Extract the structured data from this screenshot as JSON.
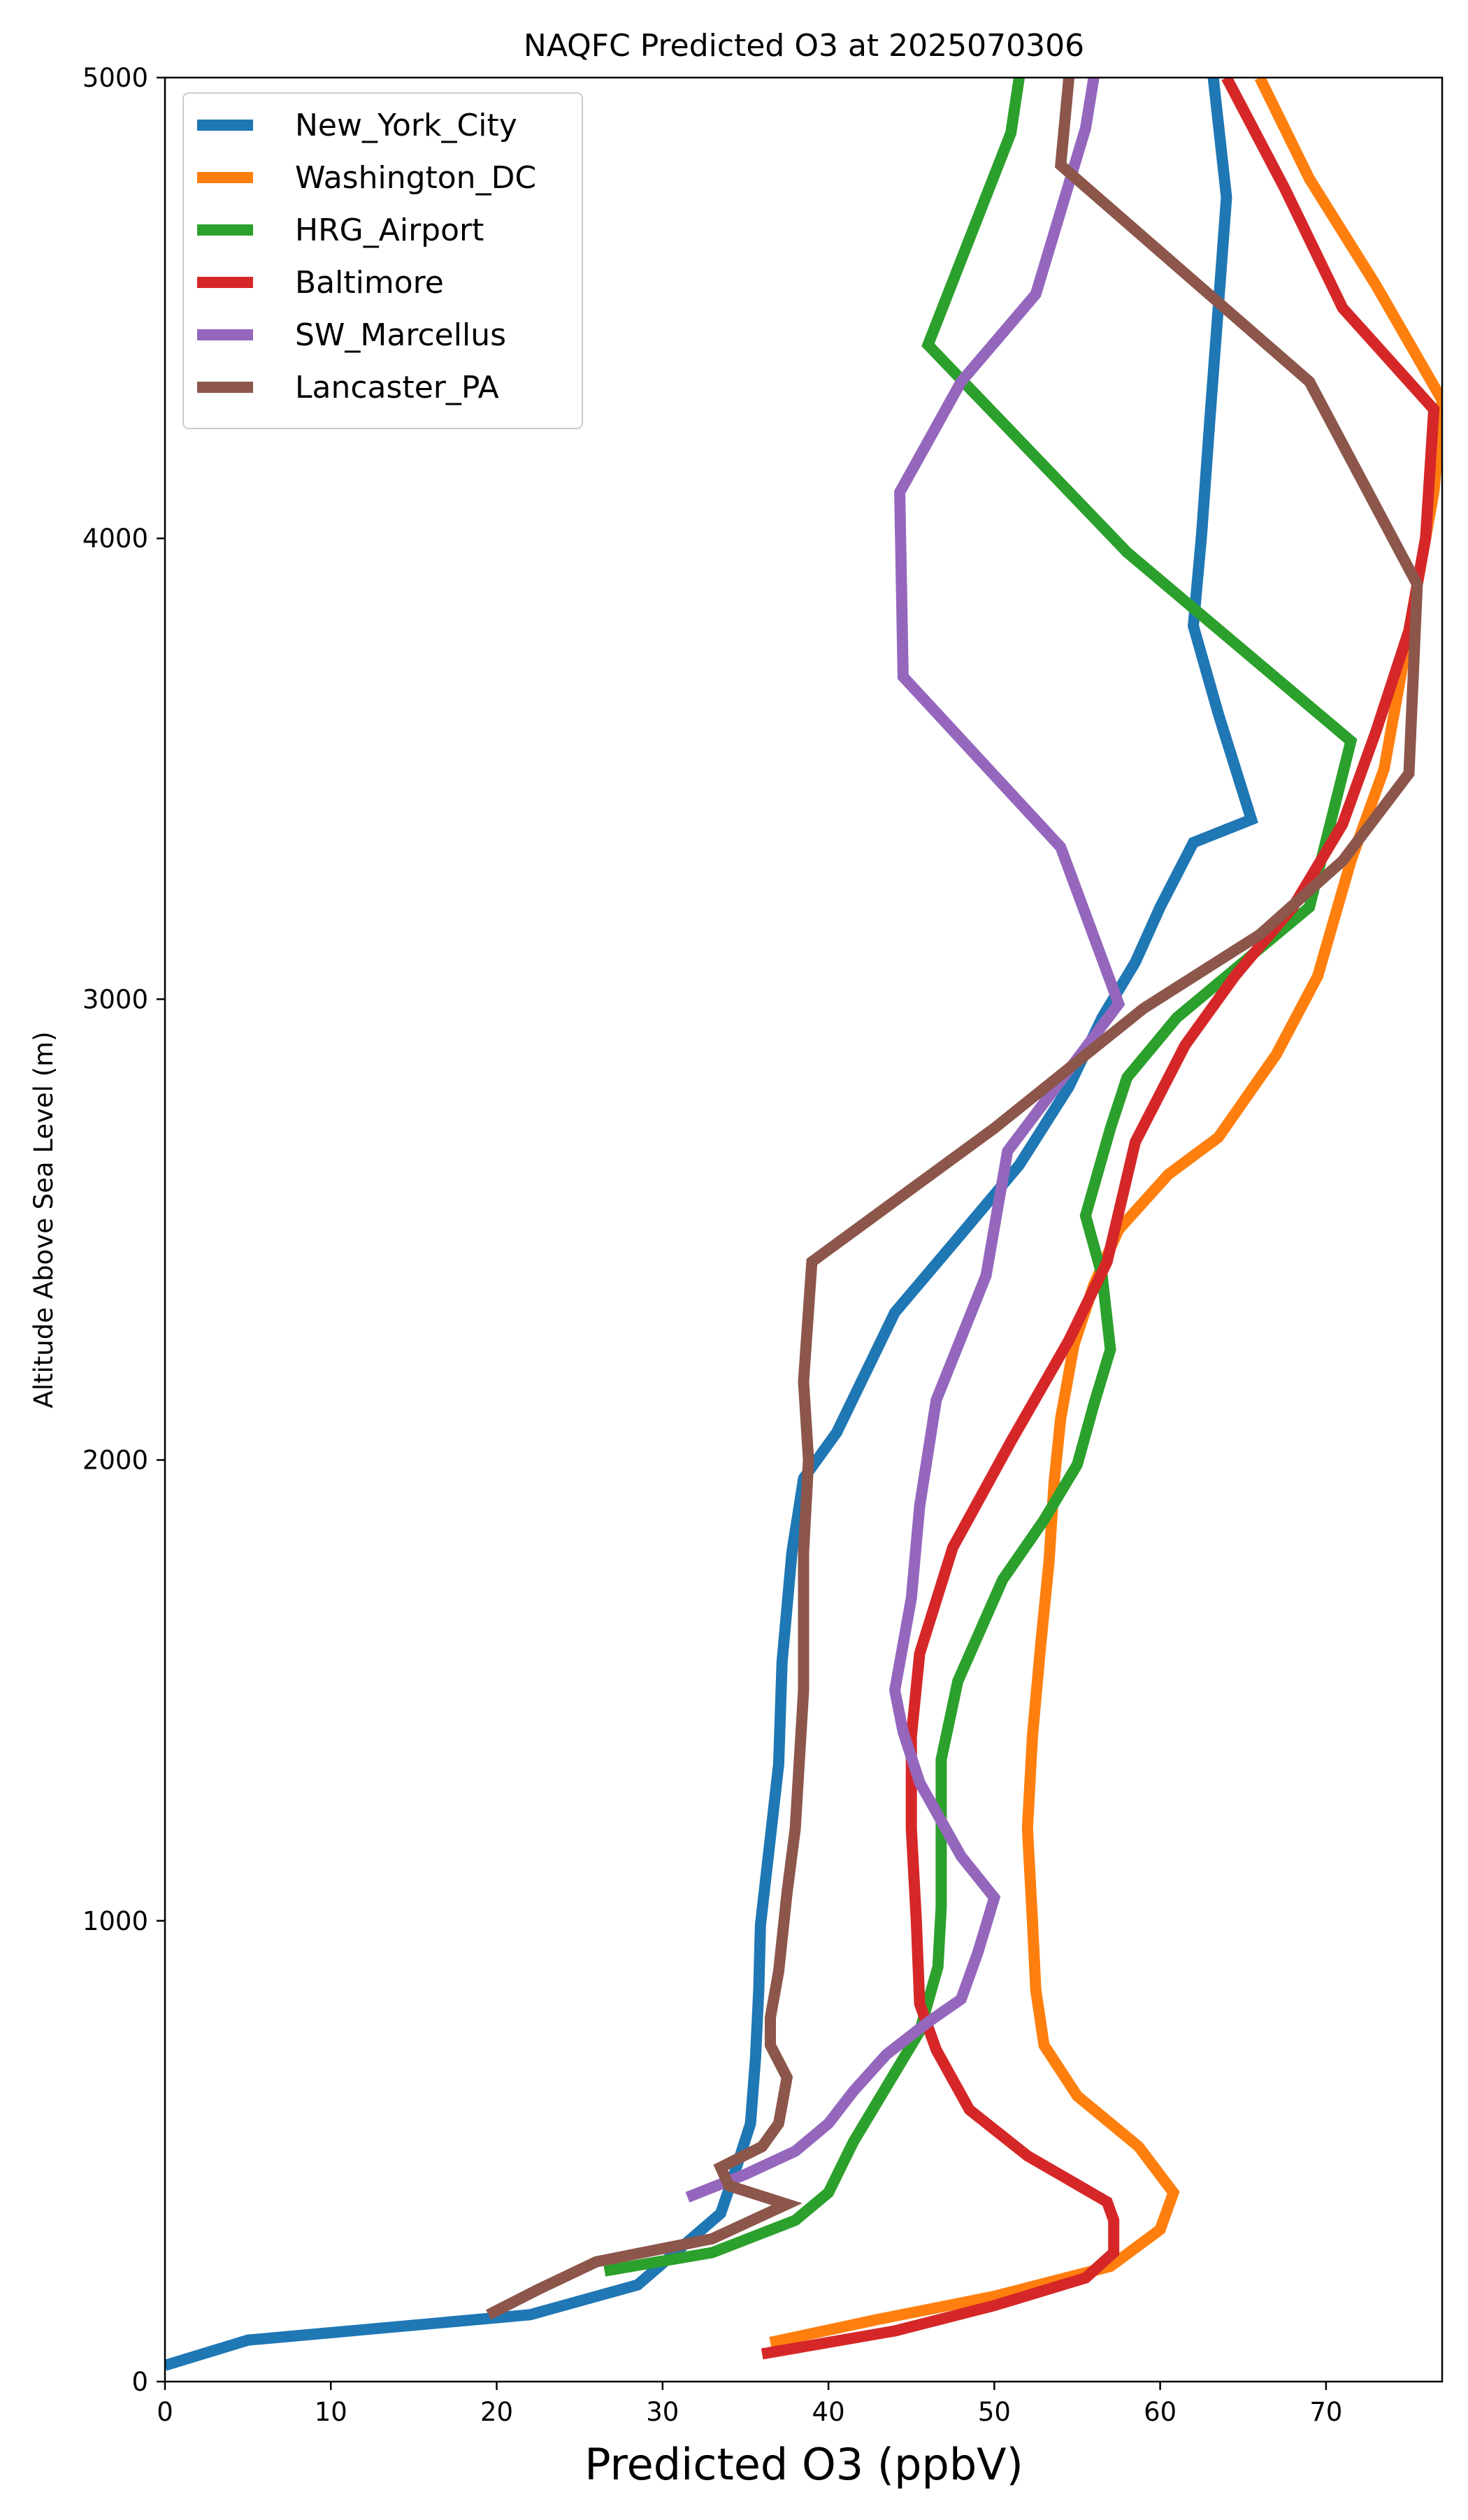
{
  "chart_data": {
    "type": "line",
    "title": "NAQFC Predicted O3 at 2025070306",
    "xlabel": "Predicted O3 (ppbV)",
    "ylabel": "Altitude Above Sea Level (m)",
    "xlim": [
      0,
      77
    ],
    "ylim": [
      0,
      5000
    ],
    "xticks": [
      0,
      10,
      20,
      30,
      40,
      50,
      60,
      70
    ],
    "yticks": [
      0,
      1000,
      2000,
      3000,
      4000,
      5000
    ],
    "grid": false,
    "legend_position": "upper-left",
    "series": [
      {
        "name": "New_York_City",
        "color": "#1f77b4",
        "points": [
          [
            0,
            35
          ],
          [
            5,
            90
          ],
          [
            22,
            145
          ],
          [
            28.5,
            210
          ],
          [
            33.5,
            365
          ],
          [
            34.5,
            470
          ],
          [
            35.3,
            560
          ],
          [
            35.6,
            700
          ],
          [
            35.8,
            850
          ],
          [
            35.9,
            990
          ],
          [
            36.5,
            1180
          ],
          [
            37,
            1340
          ],
          [
            37.2,
            1560
          ],
          [
            37.8,
            1800
          ],
          [
            38.5,
            1960
          ],
          [
            40.5,
            2060
          ],
          [
            44,
            2320
          ],
          [
            48,
            2490
          ],
          [
            51.5,
            2640
          ],
          [
            54.5,
            2810
          ],
          [
            56.5,
            2960
          ],
          [
            58.5,
            3080
          ],
          [
            60,
            3200
          ],
          [
            62,
            3340
          ],
          [
            65.5,
            3390
          ],
          [
            63.5,
            3620
          ],
          [
            62,
            3810
          ],
          [
            62.5,
            4010
          ],
          [
            63,
            4260
          ],
          [
            63.5,
            4500
          ],
          [
            64,
            4740
          ],
          [
            63.2,
            5000
          ]
        ]
      },
      {
        "name": "Washington_DC",
        "color": "#ff7f0e",
        "points": [
          [
            36.5,
            85
          ],
          [
            43,
            135
          ],
          [
            50,
            185
          ],
          [
            57,
            250
          ],
          [
            60,
            330
          ],
          [
            60.8,
            410
          ],
          [
            58.7,
            510
          ],
          [
            55,
            620
          ],
          [
            53,
            730
          ],
          [
            52.5,
            850
          ],
          [
            52.3,
            1000
          ],
          [
            52,
            1200
          ],
          [
            52.3,
            1400
          ],
          [
            52.8,
            1600
          ],
          [
            53.3,
            1780
          ],
          [
            53.6,
            1950
          ],
          [
            54,
            2090
          ],
          [
            54.8,
            2250
          ],
          [
            56,
            2380
          ],
          [
            57.5,
            2500
          ],
          [
            60.5,
            2620
          ],
          [
            63.5,
            2700
          ],
          [
            67,
            2880
          ],
          [
            69.5,
            3050
          ],
          [
            71.5,
            3300
          ],
          [
            73.5,
            3500
          ],
          [
            74.5,
            3700
          ],
          [
            75.5,
            3900
          ],
          [
            76.5,
            4100
          ],
          [
            77,
            4300
          ],
          [
            73,
            4550
          ],
          [
            69,
            4780
          ],
          [
            66,
            5000
          ]
        ]
      },
      {
        "name": "HRG_Airport",
        "color": "#2ca02c",
        "points": [
          [
            26.5,
            240
          ],
          [
            33,
            280
          ],
          [
            38,
            350
          ],
          [
            40,
            410
          ],
          [
            41.5,
            520
          ],
          [
            43.5,
            640
          ],
          [
            45.5,
            760
          ],
          [
            46.6,
            900
          ],
          [
            46.8,
            1030
          ],
          [
            46.8,
            1200
          ],
          [
            46.8,
            1350
          ],
          [
            47.8,
            1520
          ],
          [
            50.5,
            1740
          ],
          [
            53,
            1870
          ],
          [
            55,
            1990
          ],
          [
            56,
            2120
          ],
          [
            57,
            2240
          ],
          [
            56.5,
            2400
          ],
          [
            55.5,
            2530
          ],
          [
            57,
            2720
          ],
          [
            58,
            2830
          ],
          [
            61,
            2960
          ],
          [
            69,
            3200
          ],
          [
            71.5,
            3560
          ],
          [
            58,
            3970
          ],
          [
            46,
            4420
          ],
          [
            51,
            4880
          ],
          [
            51.5,
            5000
          ]
        ]
      },
      {
        "name": "Baltimore",
        "color": "#d62728",
        "points": [
          [
            36,
            60
          ],
          [
            44,
            110
          ],
          [
            50,
            165
          ],
          [
            55.5,
            225
          ],
          [
            57.2,
            280
          ],
          [
            57.2,
            350
          ],
          [
            56.8,
            390
          ],
          [
            52,
            490
          ],
          [
            48.5,
            590
          ],
          [
            46.5,
            720
          ],
          [
            45.5,
            820
          ],
          [
            45.3,
            1000
          ],
          [
            45,
            1200
          ],
          [
            45,
            1400
          ],
          [
            45.5,
            1580
          ],
          [
            47.5,
            1810
          ],
          [
            51,
            2040
          ],
          [
            54.5,
            2260
          ],
          [
            56.8,
            2430
          ],
          [
            58.5,
            2690
          ],
          [
            61.5,
            2900
          ],
          [
            64.5,
            3050
          ],
          [
            68,
            3200
          ],
          [
            71,
            3380
          ],
          [
            73,
            3580
          ],
          [
            75,
            3800
          ],
          [
            76,
            4000
          ],
          [
            76.5,
            4280
          ],
          [
            71,
            4500
          ],
          [
            67.5,
            4760
          ],
          [
            64,
            5000
          ]
        ]
      },
      {
        "name": "SW_Marcellus",
        "color": "#9467bd",
        "points": [
          [
            31.5,
            400
          ],
          [
            35,
            450
          ],
          [
            38,
            500
          ],
          [
            40,
            560
          ],
          [
            41.5,
            630
          ],
          [
            43.5,
            710
          ],
          [
            46,
            780
          ],
          [
            48,
            830
          ],
          [
            49,
            930
          ],
          [
            50,
            1050
          ],
          [
            48,
            1140
          ],
          [
            45.5,
            1300
          ],
          [
            44.5,
            1410
          ],
          [
            44,
            1500
          ],
          [
            45,
            1700
          ],
          [
            45.5,
            1900
          ],
          [
            46.5,
            2130
          ],
          [
            49.5,
            2400
          ],
          [
            50.8,
            2670
          ],
          [
            57.5,
            2990
          ],
          [
            54,
            3330
          ],
          [
            44.5,
            3700
          ],
          [
            44.3,
            4100
          ],
          [
            48,
            4340
          ],
          [
            52.5,
            4530
          ],
          [
            55.5,
            4890
          ],
          [
            56,
            5000
          ]
        ]
      },
      {
        "name": "Lancaster_PA",
        "color": "#8c564b",
        "points": [
          [
            19.5,
            145
          ],
          [
            22.5,
            200
          ],
          [
            26,
            260
          ],
          [
            33,
            310
          ],
          [
            37.5,
            385
          ],
          [
            34,
            425
          ],
          [
            33.5,
            465
          ],
          [
            36,
            510
          ],
          [
            37,
            560
          ],
          [
            37.5,
            660
          ],
          [
            36.5,
            730
          ],
          [
            36.5,
            790
          ],
          [
            37,
            890
          ],
          [
            37.5,
            1060
          ],
          [
            38,
            1200
          ],
          [
            38.5,
            1500
          ],
          [
            38.5,
            1800
          ],
          [
            38.8,
            2000
          ],
          [
            38.5,
            2170
          ],
          [
            39,
            2430
          ],
          [
            50,
            2720
          ],
          [
            59,
            2980
          ],
          [
            66,
            3140
          ],
          [
            71,
            3300
          ],
          [
            75,
            3490
          ],
          [
            75.5,
            3900
          ],
          [
            69,
            4340
          ],
          [
            54,
            4810
          ],
          [
            54.5,
            5000
          ]
        ]
      }
    ]
  }
}
